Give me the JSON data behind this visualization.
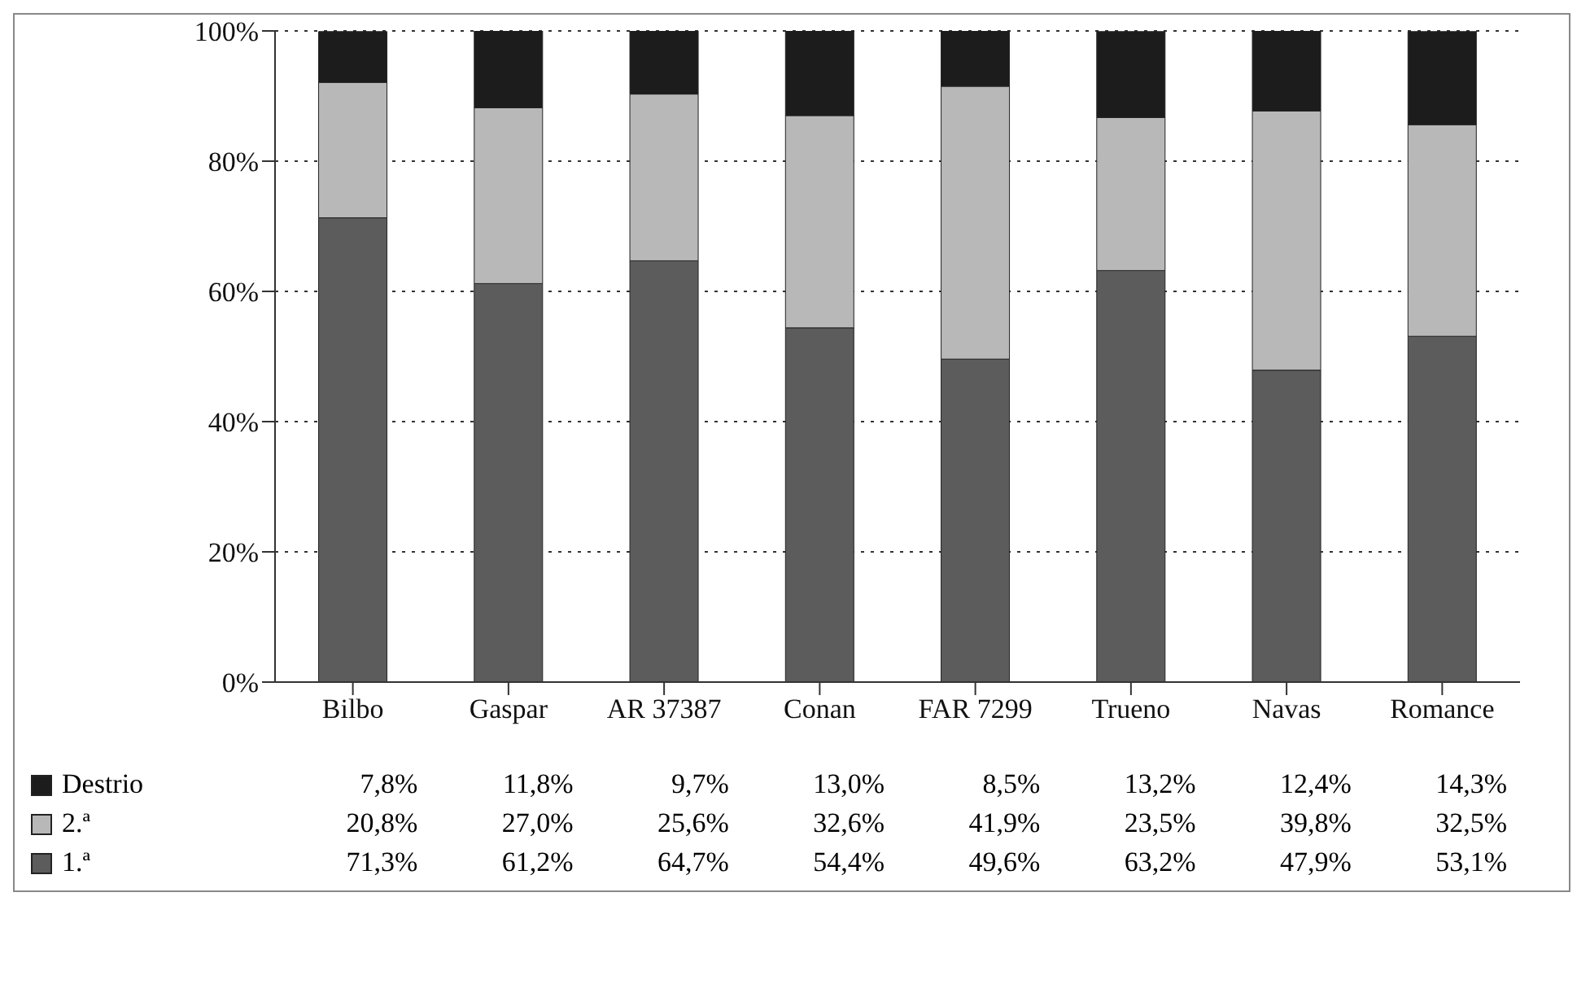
{
  "chart_data": {
    "type": "bar",
    "stacked": true,
    "categories": [
      "Bilbo",
      "Gaspar",
      "AR 37387",
      "Conan",
      "FAR 7299",
      "Trueno",
      "Navas",
      "Romance"
    ],
    "series": [
      {
        "name": "1.ª",
        "color": "#5c5c5c",
        "values": [
          71.3,
          61.2,
          64.7,
          54.4,
          49.6,
          63.2,
          47.9,
          53.1
        ],
        "value_labels": [
          "71,3%",
          "61,2%",
          "64,7%",
          "54,4%",
          "49,6%",
          "63,2%",
          "47,9%",
          "53,1%"
        ]
      },
      {
        "name": "2.ª",
        "color": "#b8b8b8",
        "values": [
          20.8,
          27.0,
          25.6,
          32.6,
          41.9,
          23.5,
          39.8,
          32.5
        ],
        "value_labels": [
          "20,8%",
          "27,0%",
          "25,6%",
          "32,6%",
          "41,9%",
          "23,5%",
          "39,8%",
          "32,5%"
        ]
      },
      {
        "name": "Destrio",
        "color": "#1c1c1c",
        "values": [
          7.8,
          11.8,
          9.7,
          13.0,
          8.5,
          13.2,
          12.4,
          14.3
        ],
        "value_labels": [
          "7,8%",
          "11,8%",
          "9,7%",
          "13,0%",
          "8,5%",
          "13,2%",
          "12,4%",
          "14,3%"
        ]
      }
    ],
    "ylim": [
      0,
      100
    ],
    "yticks": [
      {
        "value": 0,
        "label": "0%"
      },
      {
        "value": 20,
        "label": "20%"
      },
      {
        "value": 40,
        "label": "40%"
      },
      {
        "value": 60,
        "label": "60%"
      },
      {
        "value": 80,
        "label": "80%"
      },
      {
        "value": 100,
        "label": "100%"
      }
    ],
    "grid": "y",
    "legend": "bottom"
  }
}
